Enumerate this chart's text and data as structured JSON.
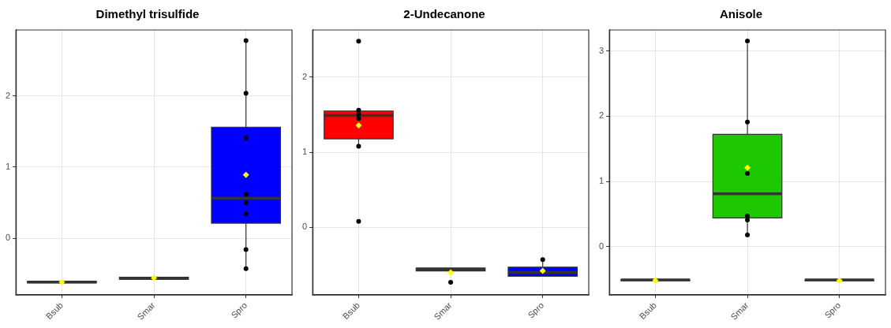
{
  "chart_data": [
    {
      "type": "box",
      "title": "Dimethyl trisulfide",
      "categories": [
        "Bsub",
        "Smar",
        "Spro"
      ],
      "ylim": [
        -0.8,
        2.93
      ],
      "yticks": [
        0,
        1,
        2
      ],
      "grid": true,
      "legend": false,
      "series": [
        {
          "type": "box",
          "colors": [
            "#ff0000",
            "#1ec800",
            "#0000ff"
          ],
          "boxes": [
            {
              "low": -0.63,
              "q1": -0.63,
              "median": -0.62,
              "q3": -0.61,
              "high": -0.61,
              "mean": -0.62
            },
            {
              "low": -0.58,
              "q1": -0.58,
              "median": -0.565,
              "q3": -0.55,
              "high": -0.55,
              "mean": -0.56
            },
            {
              "low": -0.42,
              "q1": 0.21,
              "median": 0.56,
              "q3": 1.56,
              "high": 2.78,
              "mean": 0.89
            }
          ]
        },
        {
          "type": "scatter",
          "color": "#000000",
          "marker": "circle",
          "x": [
            "Spro",
            "Spro",
            "Spro",
            "Spro",
            "Spro",
            "Spro",
            "Spro",
            "Spro"
          ],
          "values": [
            2.78,
            2.04,
            1.41,
            0.62,
            0.5,
            0.34,
            -0.16,
            -0.43
          ]
        }
      ]
    },
    {
      "type": "box",
      "title": "2-Undecanone",
      "categories": [
        "Bsub",
        "Smar",
        "Spro"
      ],
      "ylim": [
        -0.9,
        2.63
      ],
      "yticks": [
        0,
        1,
        2
      ],
      "grid": true,
      "legend": false,
      "series": [
        {
          "type": "box",
          "colors": [
            "#ff0000",
            "#1ec800",
            "#0000ff"
          ],
          "boxes": [
            {
              "low": 1.08,
              "q1": 1.18,
              "median": 1.49,
              "q3": 1.55,
              "high": 1.55,
              "mean": 1.36
            },
            {
              "low": -0.58,
              "q1": -0.58,
              "median": -0.56,
              "q3": -0.54,
              "high": -0.54,
              "mean": -0.6
            },
            {
              "low": -0.65,
              "q1": -0.65,
              "median": -0.6,
              "q3": -0.53,
              "high": -0.44,
              "mean": -0.58
            }
          ]
        },
        {
          "type": "scatter",
          "color": "#000000",
          "marker": "circle",
          "x": [
            "Bsub",
            "Bsub",
            "Bsub",
            "Bsub",
            "Bsub",
            "Bsub",
            "Smar",
            "Spro"
          ],
          "values": [
            2.48,
            1.56,
            1.51,
            1.45,
            1.08,
            0.08,
            -0.73,
            -0.43
          ]
        }
      ]
    },
    {
      "type": "box",
      "title": "Anisole",
      "categories": [
        "Bsub",
        "Smar",
        "Spro"
      ],
      "ylim": [
        -0.74,
        3.32
      ],
      "yticks": [
        0,
        1,
        2,
        3
      ],
      "grid": true,
      "legend": false,
      "series": [
        {
          "type": "box",
          "colors": [
            "#ff0000",
            "#1ec800",
            "#0000ff"
          ],
          "boxes": [
            {
              "low": -0.52,
              "q1": -0.52,
              "median": -0.51,
              "q3": -0.51,
              "high": -0.5,
              "mean": -0.52
            },
            {
              "low": 0.17,
              "q1": 0.44,
              "median": 0.81,
              "q3": 1.72,
              "high": 3.11,
              "mean": 1.21
            },
            {
              "low": -0.52,
              "q1": -0.52,
              "median": -0.51,
              "q3": -0.51,
              "high": -0.5,
              "mean": -0.52
            }
          ]
        },
        {
          "type": "scatter",
          "color": "#000000",
          "marker": "circle",
          "x": [
            "Smar",
            "Smar",
            "Smar",
            "Smar",
            "Smar",
            "Smar"
          ],
          "values": [
            3.15,
            1.91,
            1.12,
            0.47,
            0.41,
            0.18
          ]
        }
      ]
    }
  ]
}
